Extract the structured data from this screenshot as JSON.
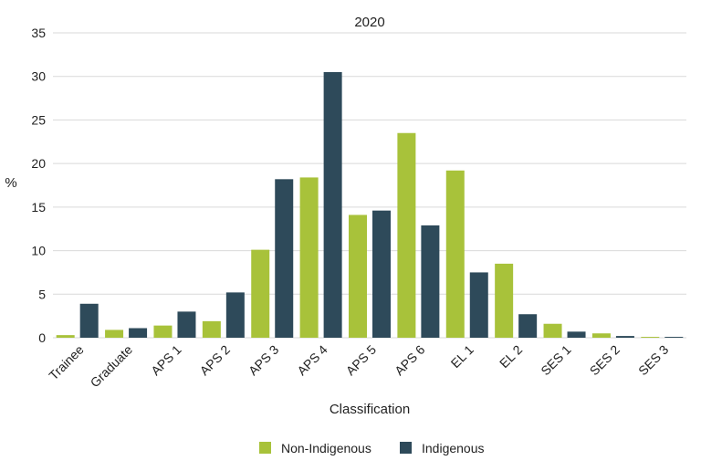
{
  "chart_data": {
    "type": "bar",
    "title": "2020",
    "xlabel": "Classification",
    "ylabel": "%",
    "ylim": [
      0,
      35
    ],
    "yticks": [
      0,
      5,
      10,
      15,
      20,
      25,
      30,
      35
    ],
    "grid": true,
    "legend_position": "bottom",
    "categories": [
      "Trainee",
      "Graduate",
      "APS 1",
      "APS 2",
      "APS 3",
      "APS 4",
      "APS 5",
      "APS 6",
      "EL 1",
      "EL 2",
      "SES 1",
      "SES 2",
      "SES 3"
    ],
    "series": [
      {
        "name": "Non-Indigenous",
        "color": "#a8c23a",
        "values": [
          0.3,
          0.9,
          1.4,
          1.9,
          10.1,
          18.4,
          14.1,
          23.5,
          19.2,
          8.5,
          1.6,
          0.5,
          0.1
        ]
      },
      {
        "name": "Indigenous",
        "color": "#2e4a5a",
        "values": [
          3.9,
          1.1,
          3.0,
          5.2,
          18.2,
          30.5,
          14.6,
          12.9,
          7.5,
          2.7,
          0.7,
          0.2,
          0.1
        ]
      }
    ]
  }
}
